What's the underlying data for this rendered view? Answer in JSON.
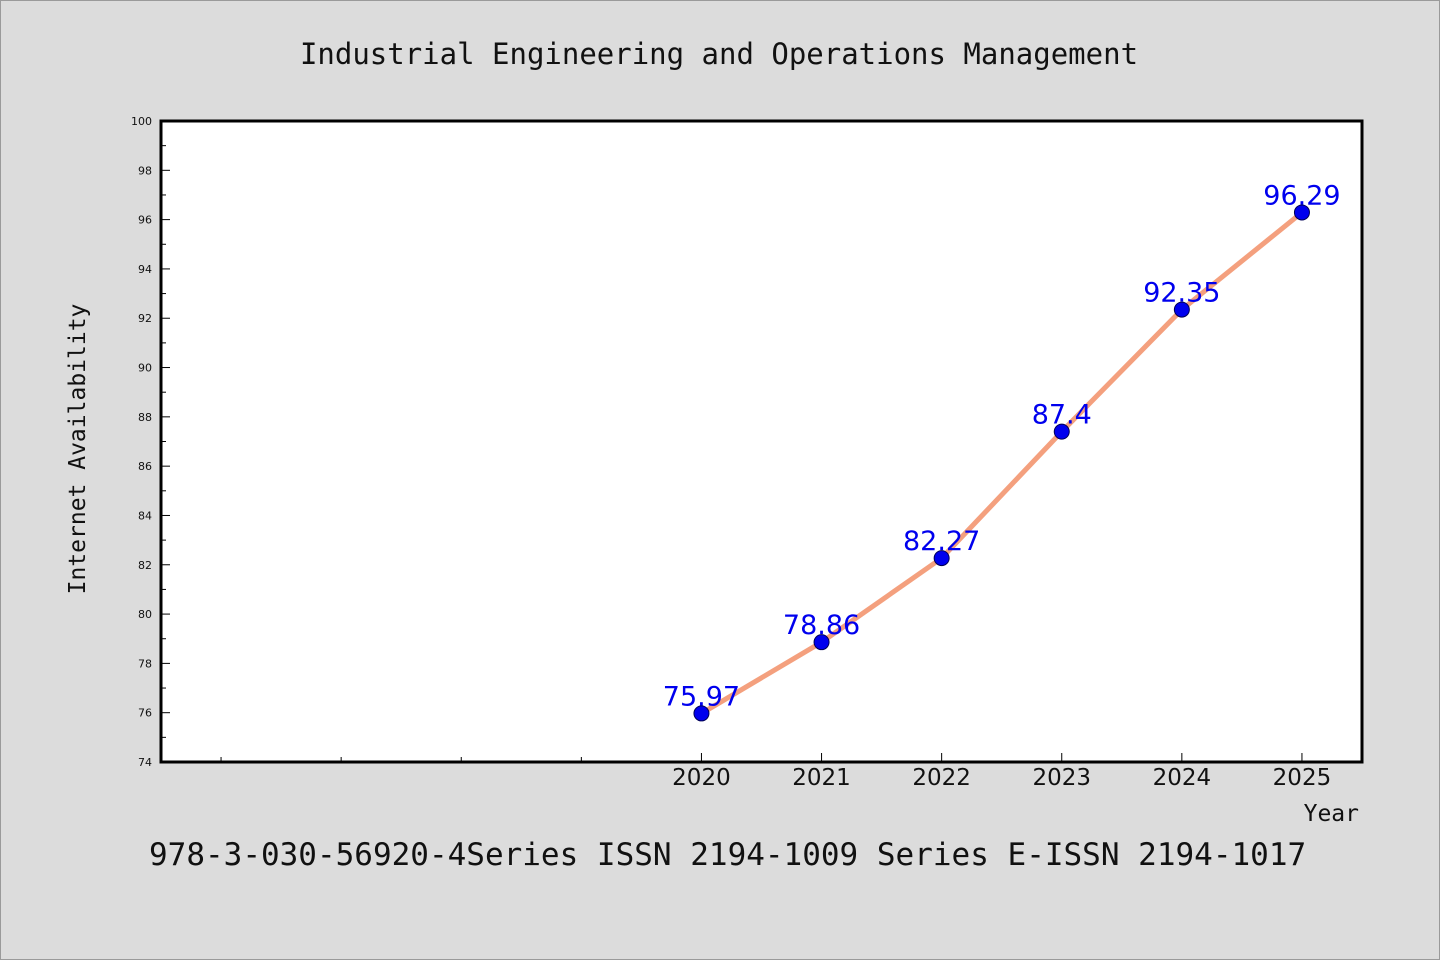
{
  "chart_data": {
    "type": "line",
    "title": "Industrial Engineering and Operations Management",
    "xlabel": "Year",
    "ylabel": "Internet Availability",
    "footer": "978-3-030-56920-4Series ISSN 2194-1009 Series E-ISSN 2194-1017",
    "x": [
      2020,
      2021,
      2022,
      2023,
      2024,
      2025
    ],
    "x_tick_labels": [
      "2020",
      "2021",
      "2022",
      "2023",
      "2024",
      "2025"
    ],
    "xlim": [
      2015.5,
      2025.5
    ],
    "ylim": [
      74,
      100
    ],
    "y_tick_labels": [
      "74",
      "76",
      "78",
      "80",
      "82",
      "84",
      "86",
      "88",
      "90",
      "92",
      "94",
      "96",
      "98",
      "100"
    ],
    "series": [
      {
        "values": [
          75.97,
          78.86,
          82.27,
          87.4,
          92.35,
          96.29
        ],
        "data_labels": [
          "75.97",
          "78.86",
          "82.27",
          "87.4",
          "92.35",
          "96.29"
        ],
        "line_color": "#f4a07e",
        "marker_color": "#0000ee"
      }
    ],
    "label_color": "#0000ee",
    "grid": false,
    "legend": "none"
  }
}
